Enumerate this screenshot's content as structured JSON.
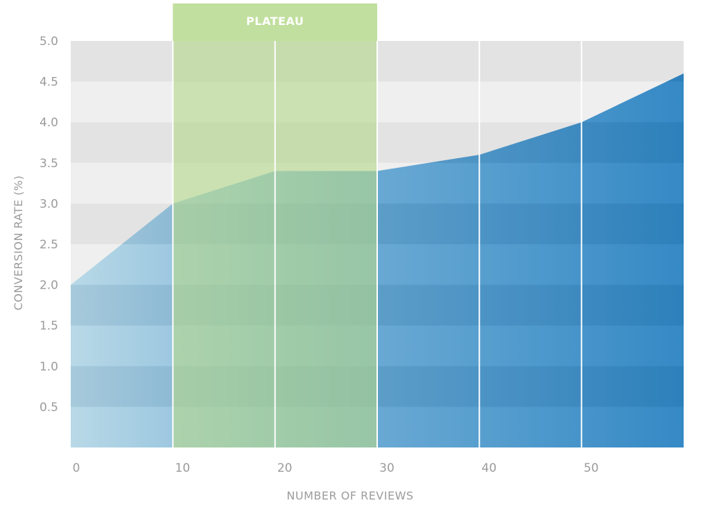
{
  "chart_data": {
    "type": "area",
    "title": "",
    "xlabel": "NUMBER OF REVIEWS",
    "ylabel": "CONVERSION RATE (%)",
    "x": [
      0,
      10,
      20,
      30,
      40,
      50,
      60
    ],
    "y": [
      2.0,
      3.0,
      3.4,
      3.4,
      3.6,
      4.0,
      4.6
    ],
    "xlim": [
      0,
      60
    ],
    "ylim": [
      0,
      5.0
    ],
    "x_ticks": [
      "0",
      "10",
      "20",
      "30",
      "40",
      "50"
    ],
    "x_tick_values": [
      0,
      10,
      20,
      30,
      40,
      50
    ],
    "y_ticks": [
      "0.5",
      "1.0",
      "1.5",
      "2.0",
      "2.5",
      "3.0",
      "3.5",
      "4.0",
      "4.5",
      "5.0"
    ],
    "y_tick_values": [
      0.5,
      1.0,
      1.5,
      2.0,
      2.5,
      3.0,
      3.5,
      4.0,
      4.5,
      5.0
    ],
    "grid": true,
    "annotations": [
      {
        "label": "PLATEAU",
        "x_start": 10,
        "x_end": 30
      }
    ],
    "colors": {
      "area_light": "#b6d7e6",
      "area_dark": "#3a8ec7",
      "plateau": "#b5d88a",
      "band_dark": "#e3e3e3",
      "band_light": "#efefef",
      "grid_line": "#ffffff",
      "axis_text": "#9b9b9b"
    }
  }
}
